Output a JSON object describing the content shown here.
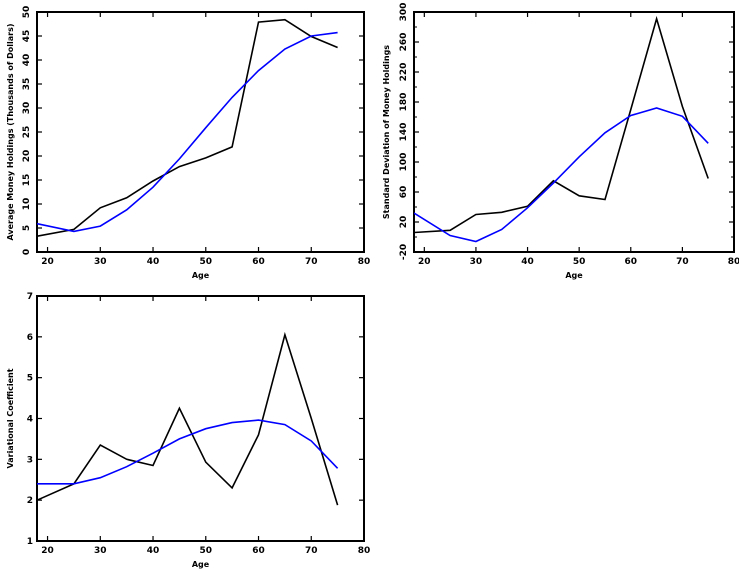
{
  "chart_data": [
    {
      "type": "line",
      "title": "",
      "xlabel": "Age",
      "ylabel": "Average Money Holdings (Thousands of Dollars)",
      "xlim": [
        18,
        80
      ],
      "ylim": [
        0,
        50
      ],
      "xticks": [
        20,
        30,
        40,
        50,
        60,
        70,
        80
      ],
      "yticks": [
        0,
        5,
        10,
        15,
        20,
        25,
        30,
        35,
        40,
        45,
        50
      ],
      "ytick_rotation": "vertical",
      "series": [
        {
          "color": "#000000",
          "x": [
            18,
            25,
            30,
            35,
            40,
            45,
            50,
            55,
            60,
            65,
            70,
            75
          ],
          "y": [
            3.3,
            4.7,
            9.2,
            11.3,
            14.8,
            17.8,
            19.6,
            21.9,
            47.9,
            48.4,
            44.9,
            42.6
          ]
        },
        {
          "color": "#0000ff",
          "x": [
            18,
            25,
            30,
            35,
            40,
            45,
            50,
            55,
            60,
            65,
            70,
            75
          ],
          "y": [
            5.9,
            4.3,
            5.4,
            8.8,
            13.5,
            19.4,
            25.9,
            32.2,
            37.8,
            42.3,
            45.0,
            45.7
          ]
        }
      ]
    },
    {
      "type": "line",
      "title": "",
      "xlabel": "Age",
      "ylabel": "Standard Deviation of Money Holdings",
      "xlim": [
        18,
        80
      ],
      "ylim": [
        -20,
        300
      ],
      "xticks": [
        20,
        30,
        40,
        50,
        60,
        70,
        80
      ],
      "yticks": [
        -20,
        20,
        60,
        100,
        140,
        180,
        220,
        260,
        300
      ],
      "yticks_minor": [
        0,
        40,
        80,
        120,
        160,
        200,
        240,
        280
      ],
      "ytick_rotation": "vertical",
      "series": [
        {
          "color": "#000000",
          "x": [
            18,
            25,
            30,
            35,
            40,
            45,
            50,
            55,
            60,
            65,
            70,
            75
          ],
          "y": [
            6,
            9,
            30,
            33,
            41,
            75,
            55,
            50,
            170,
            291,
            174,
            78
          ]
        },
        {
          "color": "#0000ff",
          "x": [
            18,
            25,
            30,
            35,
            40,
            45,
            50,
            55,
            60,
            65,
            70,
            75
          ],
          "y": [
            32,
            2,
            -6,
            10,
            39,
            72,
            107,
            139,
            162,
            172,
            161,
            125
          ]
        }
      ]
    },
    {
      "type": "line",
      "title": "",
      "xlabel": "Age",
      "ylabel": "Variational Coefficient",
      "xlim": [
        18,
        80
      ],
      "ylim": [
        1,
        7
      ],
      "xticks": [
        20,
        30,
        40,
        50,
        60,
        70,
        80
      ],
      "yticks": [
        1,
        2,
        3,
        4,
        5,
        6,
        7
      ],
      "ytick_rotation": "horizontal",
      "series": [
        {
          "color": "#000000",
          "x": [
            18,
            25,
            30,
            35,
            40,
            45,
            50,
            55,
            60,
            65,
            70,
            75
          ],
          "y": [
            2.0,
            2.4,
            3.35,
            3.0,
            2.85,
            4.25,
            2.93,
            2.3,
            3.6,
            6.05,
            4.0,
            1.88
          ]
        },
        {
          "color": "#0000ff",
          "x": [
            18,
            25,
            30,
            35,
            40,
            45,
            50,
            55,
            60,
            65,
            70,
            75
          ],
          "y": [
            2.4,
            2.4,
            2.55,
            2.82,
            3.15,
            3.5,
            3.75,
            3.9,
            3.96,
            3.85,
            3.45,
            2.78
          ]
        }
      ]
    }
  ]
}
